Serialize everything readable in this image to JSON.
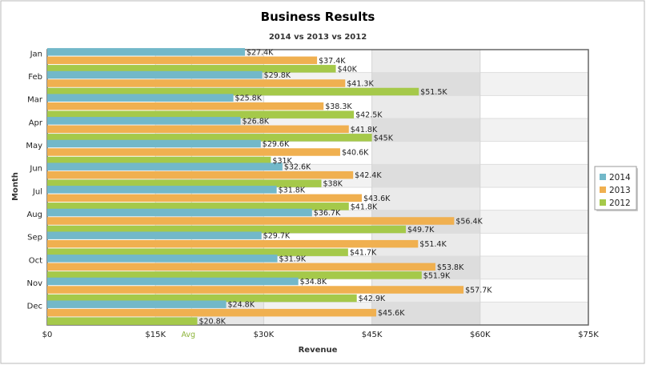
{
  "chart_data": {
    "type": "bar",
    "orientation": "horizontal",
    "title": "Business Results",
    "subtitle": "2014 vs 2013 vs 2012",
    "xlabel": "Revenue",
    "ylabel": "Month",
    "xlim": [
      0,
      75000
    ],
    "x_ticks": [
      0,
      15000,
      30000,
      45000,
      60000,
      75000
    ],
    "x_tick_labels": [
      "$0",
      "$15K",
      "$30K",
      "$45K",
      "$60K",
      "$75K"
    ],
    "categories": [
      "Jan",
      "Feb",
      "Mar",
      "Apr",
      "May",
      "Jun",
      "Jul",
      "Aug",
      "Sep",
      "Oct",
      "Nov",
      "Dec"
    ],
    "series": [
      {
        "name": "2014",
        "color": "#72b8c9",
        "values": [
          27400,
          29800,
          25800,
          26800,
          29600,
          32600,
          31800,
          36700,
          29700,
          31900,
          34800,
          24800
        ],
        "labels": [
          "$27.4K",
          "$29.8K",
          "$25.8K",
          "$26.8K",
          "$29.6K",
          "$32.6K",
          "$31.8K",
          "$36.7K",
          "$29.7K",
          "$31.9K",
          "$34.8K",
          "$24.8K"
        ]
      },
      {
        "name": "2013",
        "color": "#f0b050",
        "values": [
          37400,
          41300,
          38300,
          41800,
          40600,
          42400,
          43600,
          56400,
          51400,
          53800,
          57700,
          45600
        ],
        "labels": [
          "$37.4K",
          "$41.3K",
          "$38.3K",
          "$41.8K",
          "$40.6K",
          "$42.4K",
          "$43.6K",
          "$56.4K",
          "$51.4K",
          "$53.8K",
          "$57.7K",
          "$45.6K"
        ]
      },
      {
        "name": "2012",
        "color": "#a5c94a",
        "values": [
          40000,
          51500,
          42500,
          45000,
          31000,
          38000,
          41800,
          49700,
          41700,
          51900,
          42900,
          20800
        ],
        "labels": [
          "$40K",
          "$51.5K",
          "$42.5K",
          "$45K",
          "$31K",
          "$38K",
          "$41.8K",
          "$49.7K",
          "$41.7K",
          "$51.9K",
          "$42.9K",
          "$20.8K"
        ]
      }
    ],
    "trend_line": {
      "label": "Avg",
      "value": 20000,
      "color": "#8db43a"
    },
    "legend_position": "right",
    "grid": true
  }
}
